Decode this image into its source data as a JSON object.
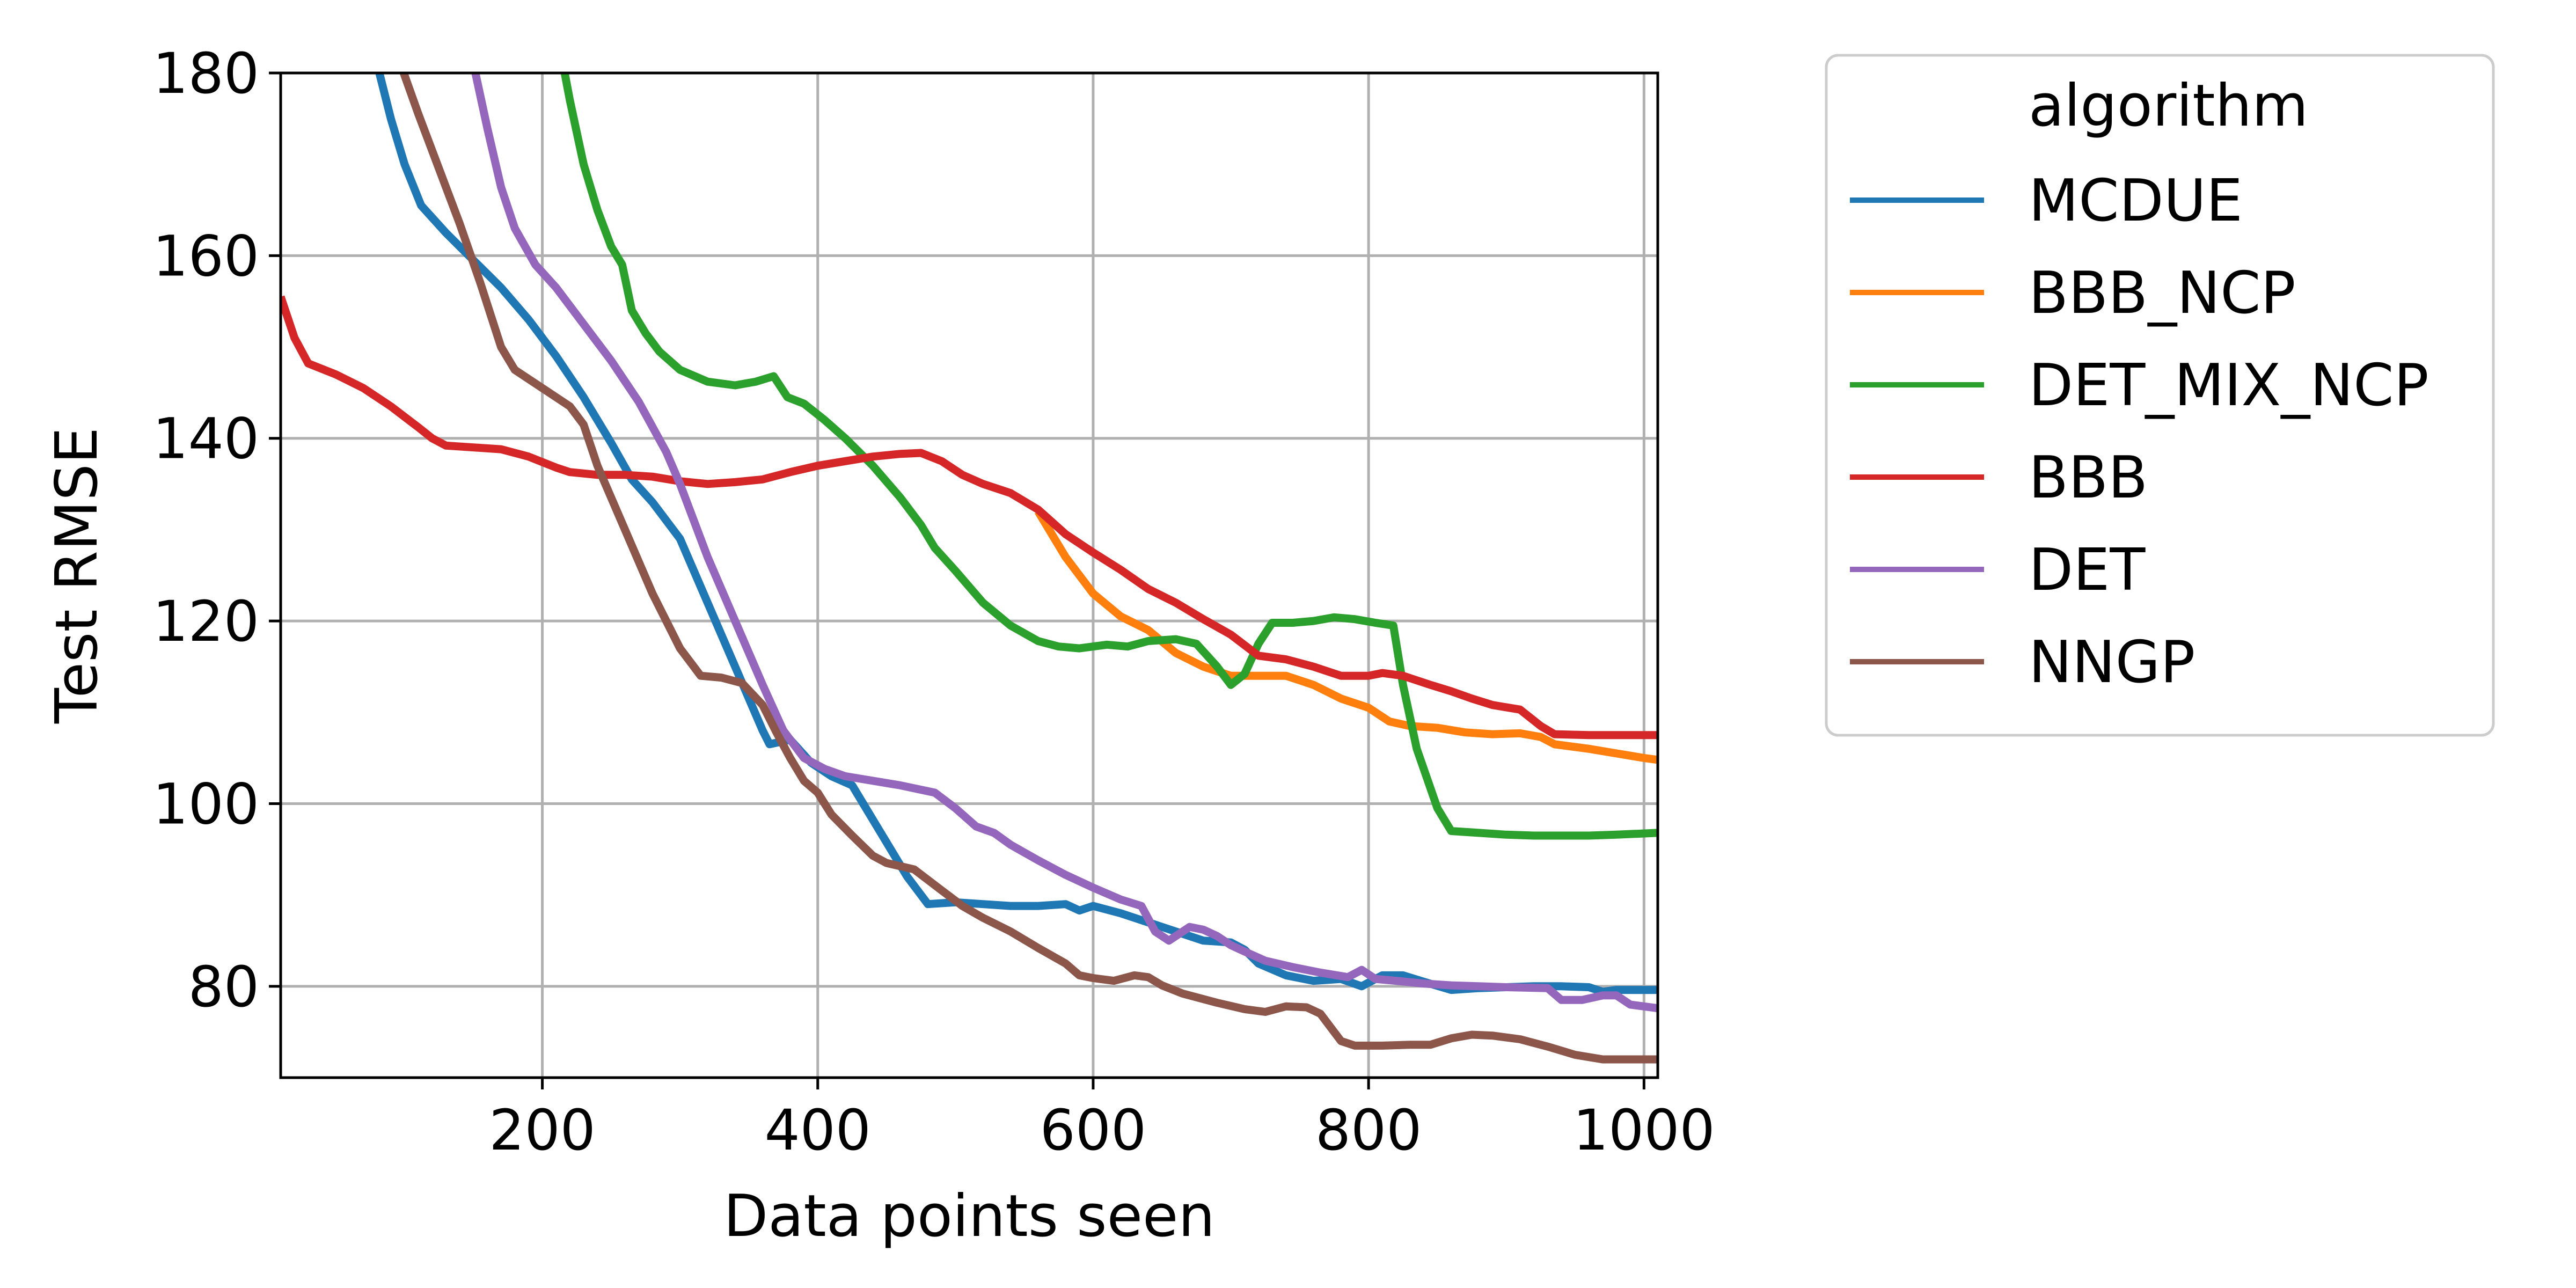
{
  "chart_data": {
    "type": "line",
    "xlabel": "Data points seen",
    "ylabel": "Test RMSE",
    "xlim": [
      10,
      1010
    ],
    "ylim": [
      70,
      180
    ],
    "xticks": [
      200,
      400,
      600,
      800,
      1000
    ],
    "yticks": [
      80,
      100,
      120,
      140,
      160,
      180
    ],
    "grid": true,
    "legend": {
      "title": "algorithm",
      "placement": "outside-right-top"
    },
    "series": [
      {
        "name": "MCDUE",
        "color": "#1f77b4",
        "points": [
          [
            80,
            181
          ],
          [
            90,
            175
          ],
          [
            100,
            170
          ],
          [
            112,
            165.5
          ],
          [
            130,
            162.5
          ],
          [
            150,
            159.5
          ],
          [
            170,
            156.5
          ],
          [
            190,
            153
          ],
          [
            210,
            149
          ],
          [
            230,
            144.5
          ],
          [
            250,
            139.5
          ],
          [
            265,
            135.5
          ],
          [
            280,
            133
          ],
          [
            300,
            129
          ],
          [
            320,
            122
          ],
          [
            340,
            115
          ],
          [
            360,
            108
          ],
          [
            365,
            106.5
          ],
          [
            380,
            107
          ],
          [
            395,
            104.5
          ],
          [
            410,
            103
          ],
          [
            425,
            102
          ],
          [
            445,
            97
          ],
          [
            465,
            92
          ],
          [
            480,
            89
          ],
          [
            500,
            89.2
          ],
          [
            520,
            89
          ],
          [
            540,
            88.8
          ],
          [
            560,
            88.8
          ],
          [
            580,
            89
          ],
          [
            590,
            88.3
          ],
          [
            600,
            88.8
          ],
          [
            620,
            88
          ],
          [
            640,
            87
          ],
          [
            660,
            86
          ],
          [
            680,
            85
          ],
          [
            700,
            84.8
          ],
          [
            710,
            84
          ],
          [
            720,
            82.5
          ],
          [
            740,
            81.2
          ],
          [
            760,
            80.6
          ],
          [
            780,
            80.8
          ],
          [
            795,
            80
          ],
          [
            810,
            81.2
          ],
          [
            825,
            81.2
          ],
          [
            840,
            80.5
          ],
          [
            860,
            79.6
          ],
          [
            880,
            79.8
          ],
          [
            900,
            79.9
          ],
          [
            920,
            80
          ],
          [
            940,
            80
          ],
          [
            960,
            79.9
          ],
          [
            970,
            79.4
          ],
          [
            980,
            79.6
          ],
          [
            1010,
            79.6
          ]
        ]
      },
      {
        "name": "BBB_NCP",
        "color": "#ff7f0e",
        "points": [
          [
            560,
            132
          ],
          [
            580,
            127
          ],
          [
            600,
            123
          ],
          [
            620,
            120.5
          ],
          [
            640,
            119
          ],
          [
            660,
            116.5
          ],
          [
            680,
            115
          ],
          [
            700,
            114
          ],
          [
            720,
            114
          ],
          [
            740,
            114
          ],
          [
            760,
            113
          ],
          [
            780,
            111.5
          ],
          [
            800,
            110.5
          ],
          [
            815,
            109
          ],
          [
            830,
            108.5
          ],
          [
            850,
            108.3
          ],
          [
            870,
            107.8
          ],
          [
            890,
            107.6
          ],
          [
            910,
            107.7
          ],
          [
            925,
            107.3
          ],
          [
            935,
            106.5
          ],
          [
            960,
            106
          ],
          [
            980,
            105.5
          ],
          [
            1000,
            105
          ],
          [
            1010,
            104.8
          ]
        ]
      },
      {
        "name": "DET_MIX_NCP",
        "color": "#2ca02c",
        "points": [
          [
            215,
            181
          ],
          [
            220,
            177
          ],
          [
            230,
            170
          ],
          [
            240,
            165
          ],
          [
            250,
            161
          ],
          [
            258,
            159
          ],
          [
            265,
            154
          ],
          [
            275,
            151.5
          ],
          [
            285,
            149.5
          ],
          [
            300,
            147.5
          ],
          [
            320,
            146.2
          ],
          [
            340,
            145.8
          ],
          [
            355,
            146.2
          ],
          [
            368,
            146.8
          ],
          [
            378,
            144.5
          ],
          [
            390,
            143.8
          ],
          [
            405,
            142
          ],
          [
            420,
            140
          ],
          [
            440,
            137
          ],
          [
            460,
            133.5
          ],
          [
            475,
            130.5
          ],
          [
            485,
            128
          ],
          [
            500,
            125.5
          ],
          [
            520,
            122
          ],
          [
            540,
            119.5
          ],
          [
            560,
            117.8
          ],
          [
            575,
            117.2
          ],
          [
            590,
            117
          ],
          [
            610,
            117.4
          ],
          [
            625,
            117.2
          ],
          [
            640,
            117.8
          ],
          [
            660,
            118
          ],
          [
            675,
            117.5
          ],
          [
            690,
            115
          ],
          [
            700,
            113
          ],
          [
            710,
            114.2
          ],
          [
            720,
            117.5
          ],
          [
            730,
            119.8
          ],
          [
            745,
            119.8
          ],
          [
            760,
            120
          ],
          [
            775,
            120.4
          ],
          [
            790,
            120.2
          ],
          [
            805,
            119.8
          ],
          [
            818,
            119.5
          ],
          [
            825,
            113
          ],
          [
            835,
            106
          ],
          [
            850,
            99.5
          ],
          [
            860,
            97
          ],
          [
            880,
            96.8
          ],
          [
            900,
            96.6
          ],
          [
            920,
            96.5
          ],
          [
            940,
            96.5
          ],
          [
            960,
            96.5
          ],
          [
            980,
            96.6
          ],
          [
            1010,
            96.8
          ]
        ]
      },
      {
        "name": "BBB",
        "color": "#d62728",
        "points": [
          [
            10,
            155.5
          ],
          [
            20,
            151
          ],
          [
            30,
            148.2
          ],
          [
            50,
            147
          ],
          [
            70,
            145.5
          ],
          [
            90,
            143.5
          ],
          [
            110,
            141.2
          ],
          [
            120,
            140
          ],
          [
            130,
            139.2
          ],
          [
            150,
            139
          ],
          [
            170,
            138.8
          ],
          [
            190,
            138
          ],
          [
            210,
            136.8
          ],
          [
            220,
            136.3
          ],
          [
            240,
            136
          ],
          [
            260,
            136
          ],
          [
            280,
            135.8
          ],
          [
            300,
            135.3
          ],
          [
            320,
            135
          ],
          [
            340,
            135.2
          ],
          [
            360,
            135.5
          ],
          [
            380,
            136.3
          ],
          [
            400,
            137
          ],
          [
            420,
            137.5
          ],
          [
            440,
            138
          ],
          [
            460,
            138.3
          ],
          [
            475,
            138.4
          ],
          [
            490,
            137.5
          ],
          [
            505,
            136
          ],
          [
            520,
            135
          ],
          [
            540,
            134
          ],
          [
            560,
            132.2
          ],
          [
            580,
            129.5
          ],
          [
            600,
            127.5
          ],
          [
            620,
            125.6
          ],
          [
            640,
            123.5
          ],
          [
            660,
            122
          ],
          [
            680,
            120.2
          ],
          [
            700,
            118.5
          ],
          [
            720,
            116.2
          ],
          [
            740,
            115.8
          ],
          [
            760,
            115
          ],
          [
            780,
            114
          ],
          [
            800,
            114
          ],
          [
            810,
            114.3
          ],
          [
            825,
            114
          ],
          [
            845,
            113
          ],
          [
            860,
            112.3
          ],
          [
            875,
            111.5
          ],
          [
            890,
            110.8
          ],
          [
            910,
            110.3
          ],
          [
            925,
            108.5
          ],
          [
            935,
            107.6
          ],
          [
            960,
            107.5
          ],
          [
            985,
            107.5
          ],
          [
            1010,
            107.5
          ]
        ]
      },
      {
        "name": "DET",
        "color": "#9467bd",
        "points": [
          [
            150,
            181
          ],
          [
            160,
            174
          ],
          [
            170,
            167.5
          ],
          [
            180,
            163
          ],
          [
            195,
            159
          ],
          [
            210,
            156.5
          ],
          [
            230,
            152.5
          ],
          [
            250,
            148.5
          ],
          [
            270,
            144
          ],
          [
            290,
            138.5
          ],
          [
            300,
            135
          ],
          [
            320,
            127
          ],
          [
            340,
            120
          ],
          [
            360,
            113
          ],
          [
            375,
            108
          ],
          [
            390,
            105
          ],
          [
            405,
            103.8
          ],
          [
            420,
            103
          ],
          [
            440,
            102.5
          ],
          [
            460,
            102
          ],
          [
            485,
            101.2
          ],
          [
            500,
            99.5
          ],
          [
            515,
            97.5
          ],
          [
            528,
            96.8
          ],
          [
            540,
            95.5
          ],
          [
            560,
            93.8
          ],
          [
            580,
            92.2
          ],
          [
            600,
            90.8
          ],
          [
            620,
            89.5
          ],
          [
            635,
            88.8
          ],
          [
            645,
            86
          ],
          [
            655,
            85
          ],
          [
            670,
            86.5
          ],
          [
            680,
            86.2
          ],
          [
            690,
            85.5
          ],
          [
            700,
            84.5
          ],
          [
            710,
            83.8
          ],
          [
            725,
            82.8
          ],
          [
            745,
            82.1
          ],
          [
            765,
            81.5
          ],
          [
            785,
            81
          ],
          [
            795,
            81.8
          ],
          [
            805,
            80.8
          ],
          [
            820,
            80.6
          ],
          [
            840,
            80.3
          ],
          [
            860,
            80.1
          ],
          [
            880,
            80
          ],
          [
            900,
            79.9
          ],
          [
            930,
            79.8
          ],
          [
            940,
            78.5
          ],
          [
            955,
            78.5
          ],
          [
            970,
            79
          ],
          [
            980,
            79
          ],
          [
            990,
            78
          ],
          [
            1010,
            77.6
          ]
        ]
      },
      {
        "name": "NNGP",
        "color": "#8c564b",
        "points": [
          [
            97,
            181
          ],
          [
            110,
            175.5
          ],
          [
            125,
            169.5
          ],
          [
            140,
            163.5
          ],
          [
            155,
            157
          ],
          [
            170,
            150
          ],
          [
            180,
            147.5
          ],
          [
            200,
            145.5
          ],
          [
            220,
            143.5
          ],
          [
            230,
            141.5
          ],
          [
            240,
            137
          ],
          [
            260,
            130
          ],
          [
            280,
            123
          ],
          [
            300,
            117
          ],
          [
            315,
            114
          ],
          [
            330,
            113.8
          ],
          [
            345,
            113.2
          ],
          [
            360,
            110.8
          ],
          [
            370,
            107.8
          ],
          [
            380,
            105
          ],
          [
            390,
            102.5
          ],
          [
            400,
            101.2
          ],
          [
            410,
            98.8
          ],
          [
            425,
            96.5
          ],
          [
            440,
            94.3
          ],
          [
            450,
            93.5
          ],
          [
            470,
            92.8
          ],
          [
            490,
            90.5
          ],
          [
            505,
            88.8
          ],
          [
            520,
            87.5
          ],
          [
            540,
            86
          ],
          [
            560,
            84.2
          ],
          [
            580,
            82.5
          ],
          [
            590,
            81.2
          ],
          [
            600,
            80.9
          ],
          [
            615,
            80.6
          ],
          [
            630,
            81.2
          ],
          [
            640,
            81
          ],
          [
            650,
            80.1
          ],
          [
            665,
            79.2
          ],
          [
            690,
            78.2
          ],
          [
            710,
            77.5
          ],
          [
            725,
            77.2
          ],
          [
            740,
            77.8
          ],
          [
            755,
            77.7
          ],
          [
            765,
            77
          ],
          [
            780,
            74
          ],
          [
            790,
            73.5
          ],
          [
            810,
            73.5
          ],
          [
            830,
            73.6
          ],
          [
            845,
            73.6
          ],
          [
            860,
            74.3
          ],
          [
            875,
            74.7
          ],
          [
            890,
            74.6
          ],
          [
            910,
            74.2
          ],
          [
            930,
            73.4
          ],
          [
            950,
            72.5
          ],
          [
            970,
            72
          ],
          [
            990,
            72
          ],
          [
            1010,
            72
          ]
        ]
      }
    ]
  }
}
